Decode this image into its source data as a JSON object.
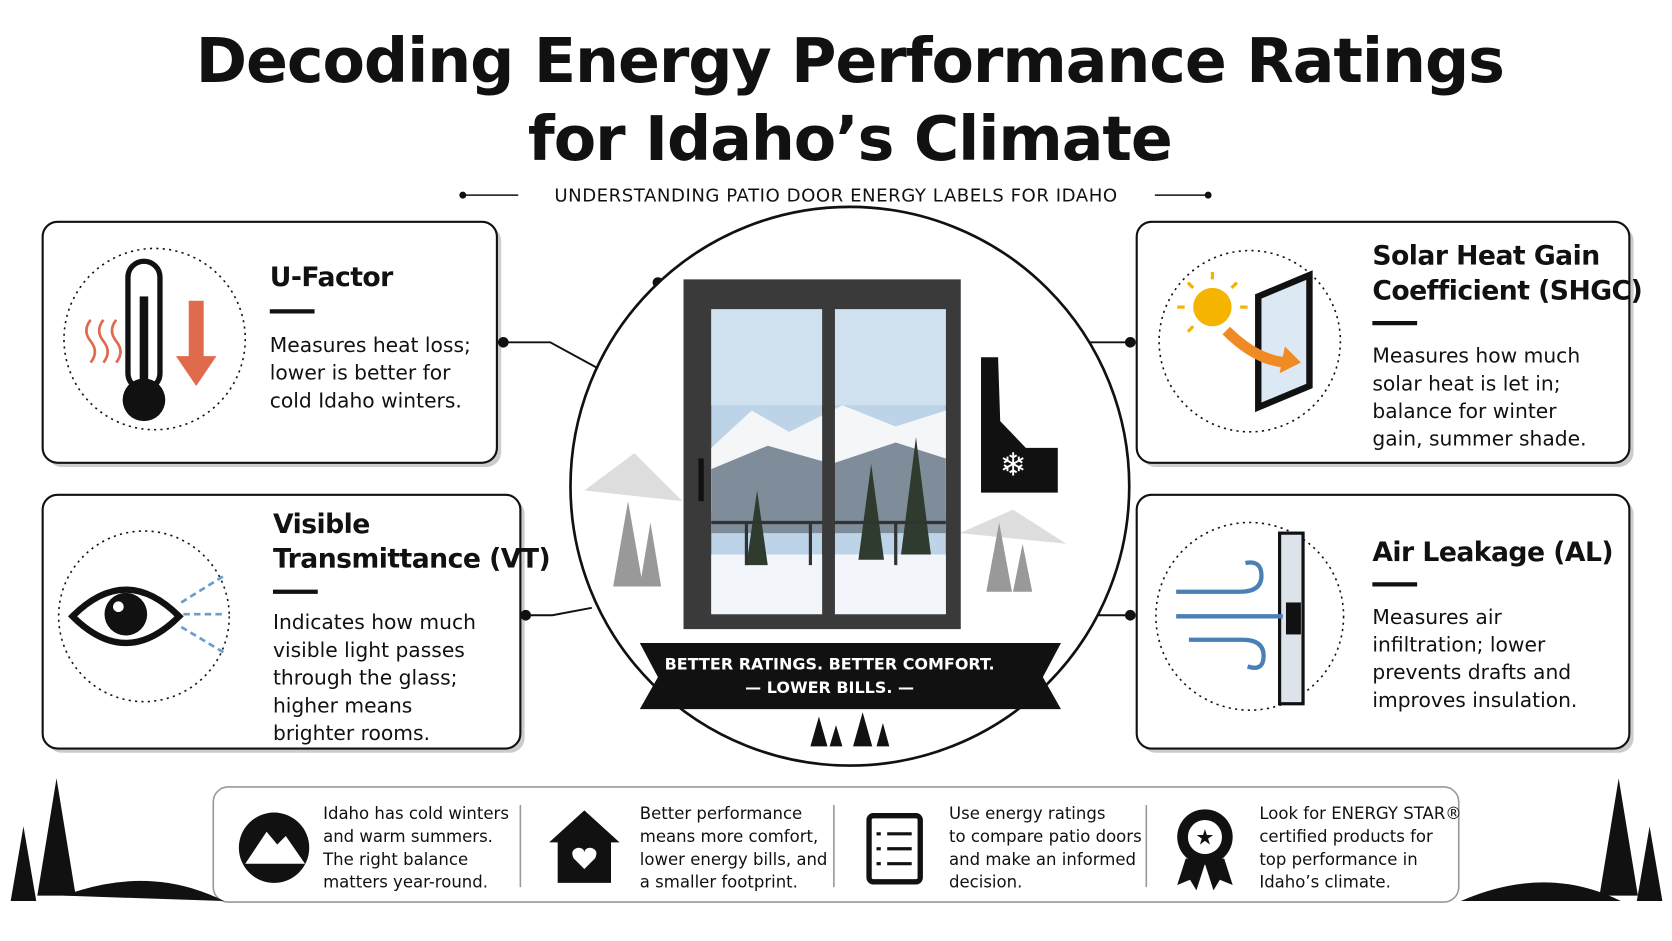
{
  "header": {
    "title_lines": [
      "Decoding Energy Performance Ratings",
      "for Idaho’s Climate"
    ],
    "subtitle": "UNDERSTANDING PATIO DOOR ENERGY LABELS FOR IDAHO"
  },
  "cards": [
    {
      "title_lines": [
        "U-Factor"
      ],
      "description_lines": [
        "Measures heat loss;",
        "lower is better for",
        "cold Idaho winters."
      ]
    },
    {
      "title_lines": [
        "Solar Heat Gain",
        "Coefficient (SHGC)"
      ],
      "description_lines": [
        "Measures how much",
        "solar heat is let in;",
        "balance for winter",
        "gain, summer shade."
      ]
    },
    {
      "title_lines": [
        "Visible",
        "Transmittance (VT)"
      ],
      "description_lines": [
        "Indicates how much",
        "visible light passes",
        "through the glass;",
        "higher means",
        "brighter rooms."
      ]
    },
    {
      "title_lines": [
        "Air Leakage (AL)"
      ],
      "description_lines": [
        "Measures air",
        "infiltration; lower",
        "prevents drafts and",
        "improves insulation."
      ]
    }
  ],
  "banner_lines": [
    "BETTER RATINGS. BETTER COMFORT.",
    "— LOWER BILLS. —"
  ],
  "footer": [
    {
      "lines": [
        "Idaho has cold winters",
        "and warm summers.",
        "The right balance",
        "matters year-round."
      ]
    },
    {
      "lines": [
        "Better performance",
        "means more comfort,",
        "lower energy bills, and",
        "a smaller footprint."
      ]
    },
    {
      "lines": [
        "Use energy ratings",
        "to compare patio doors",
        "and make an informed",
        "decision."
      ]
    },
    {
      "lines": [
        "Look for ENERGY STAR®",
        "certified products for",
        "top performance in",
        "Idaho’s climate."
      ]
    }
  ]
}
